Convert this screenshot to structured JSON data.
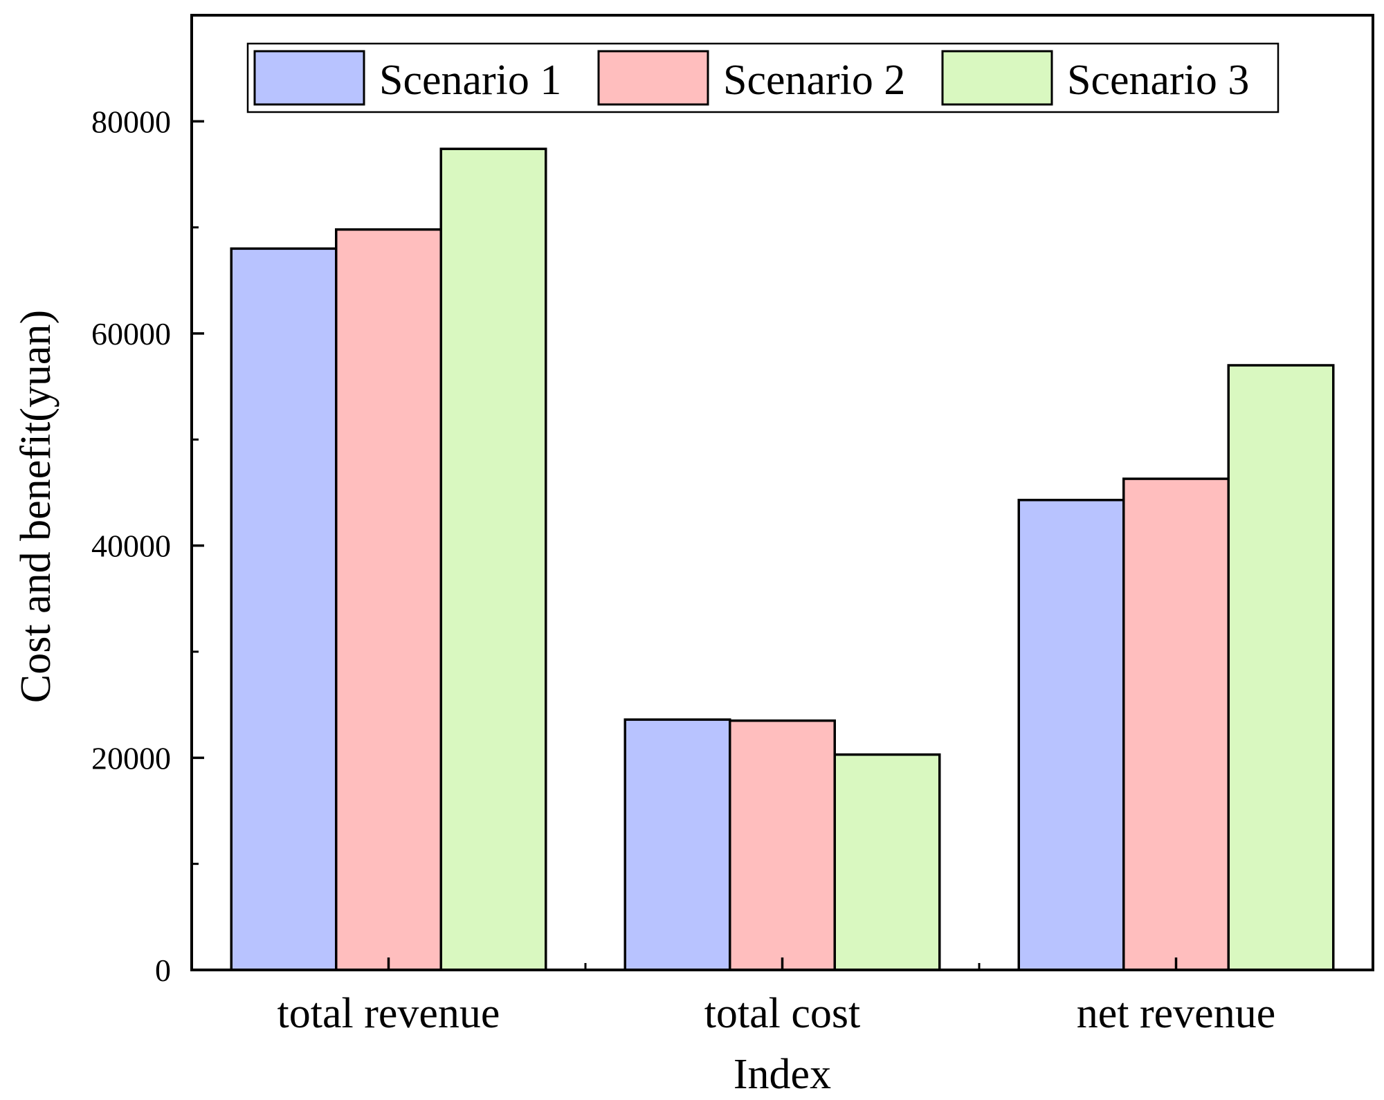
{
  "chart_data": {
    "type": "bar",
    "xlabel": "Index",
    "ylabel": "Cost and benefit(yuan)",
    "categories": [
      "total revenue",
      "total cost",
      "net revenue"
    ],
    "ylim": [
      0,
      90000
    ],
    "yticks": [
      0,
      20000,
      40000,
      60000,
      80000
    ],
    "yticks_minor": [
      10000,
      30000,
      50000,
      70000
    ],
    "grid": false,
    "legend_position": "top",
    "series": [
      {
        "name": "Scenario 1",
        "color": "#b8c3ff",
        "values": [
          68000,
          23600,
          44300
        ]
      },
      {
        "name": "Scenario 2",
        "color": "#ffbebe",
        "values": [
          69800,
          23500,
          46300
        ]
      },
      {
        "name": "Scenario 3",
        "color": "#d9f8c0",
        "values": [
          77400,
          20300,
          57000
        ]
      }
    ]
  }
}
